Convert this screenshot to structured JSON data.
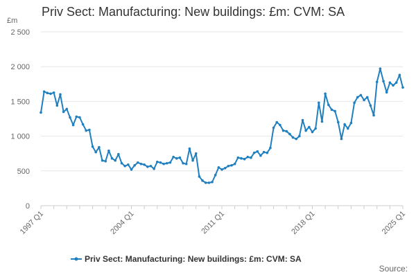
{
  "chart_data": {
    "type": "line",
    "title": "Priv Sect: Manufacturing: New buildings: £m: CVM: SA",
    "ylabel": "£m",
    "source_label": "Source:",
    "ylim": [
      0,
      2500
    ],
    "yticks": [
      {
        "value": 0,
        "label": "0"
      },
      {
        "value": 500,
        "label": "500"
      },
      {
        "value": 1000,
        "label": "1 000"
      },
      {
        "value": 1500,
        "label": "1 500"
      },
      {
        "value": 2000,
        "label": "2 000"
      },
      {
        "value": 2500,
        "label": "2 500"
      }
    ],
    "xticks": [
      {
        "index": 0,
        "label": "1997 Q1"
      },
      {
        "index": 28,
        "label": "2004 Q1"
      },
      {
        "index": 56,
        "label": "2011 Q1"
      },
      {
        "index": 84,
        "label": "2018 Q1"
      },
      {
        "index": 112,
        "label": "2025 Q1"
      }
    ],
    "grid": true,
    "legend_position": "bottom",
    "colors": {
      "series": "#1f7fbf",
      "grid": "#e6e6e6",
      "axis": "#cccccc"
    },
    "series": [
      {
        "name": "Priv Sect: Manufacturing: New buildings: £m: CVM: SA",
        "start": "1997 Q1",
        "frequency": "quarterly",
        "values": [
          1340,
          1640,
          1620,
          1610,
          1625,
          1440,
          1600,
          1350,
          1390,
          1270,
          1160,
          1280,
          1270,
          1170,
          1080,
          1090,
          850,
          770,
          840,
          650,
          640,
          790,
          680,
          650,
          740,
          610,
          570,
          590,
          520,
          580,
          620,
          600,
          590,
          560,
          570,
          530,
          630,
          620,
          600,
          610,
          620,
          700,
          680,
          690,
          610,
          600,
          820,
          650,
          750,
          420,
          360,
          330,
          330,
          340,
          440,
          550,
          520,
          540,
          570,
          580,
          600,
          690,
          680,
          670,
          700,
          690,
          760,
          780,
          720,
          770,
          760,
          830,
          1120,
          1200,
          1160,
          1080,
          1070,
          1030,
          980,
          960,
          1000,
          1230,
          1080,
          1130,
          1060,
          1110,
          1480,
          1210,
          1610,
          1450,
          1380,
          1360,
          1200,
          960,
          1170,
          1110,
          1190,
          1480,
          1560,
          1590,
          1520,
          1560,
          1440,
          1300,
          1780,
          1970,
          1790,
          1630,
          1770,
          1730,
          1770,
          1880,
          1700
        ]
      }
    ]
  }
}
